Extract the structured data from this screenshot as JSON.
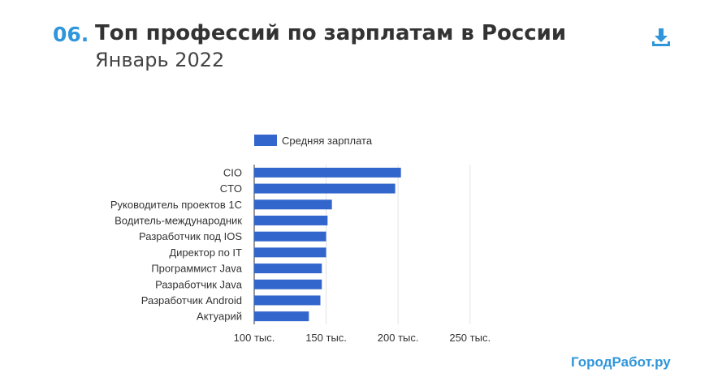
{
  "header": {
    "number": "06.",
    "title": "Топ профессий по зарплатам в России",
    "subtitle": "Январь 2022"
  },
  "brand": "ГородРабот.ру",
  "icons": {
    "download": "download-icon"
  },
  "colors": {
    "accent": "#2f96db",
    "bar": "#3366cc"
  },
  "chart_data": {
    "type": "bar",
    "orientation": "horizontal",
    "legend": {
      "label": "Средняя зарплата",
      "placement": "top"
    },
    "categories": [
      "CIO",
      "CTO",
      "Руководитель проектов 1С",
      "Водитель-международник",
      "Разработчик под IOS",
      "Директор по IT",
      "Программист Java",
      "Разработчик Java",
      "Разработчик Android",
      "Актуарий"
    ],
    "series": [
      {
        "name": "Средняя зарплата",
        "values": [
          202000,
          198000,
          154000,
          151000,
          150000,
          150000,
          147000,
          147000,
          146000,
          138000
        ]
      }
    ],
    "xlim": [
      100000,
      275000
    ],
    "xticks": [
      100000,
      150000,
      200000,
      250000
    ],
    "xtick_labels": [
      "100 тыс.",
      "150 тыс.",
      "200 тыс.",
      "250 тыс."
    ],
    "grid": true
  }
}
